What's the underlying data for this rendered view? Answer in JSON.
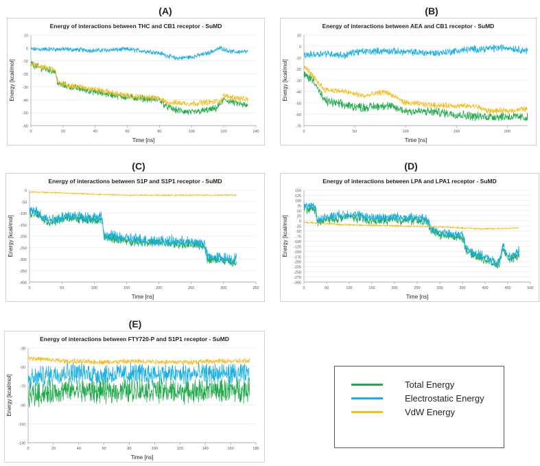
{
  "colors": {
    "total": "#1faa4a",
    "electrostatic": "#18aee6",
    "vdw": "#f5bd1f"
  },
  "legend": [
    {
      "label": "Total Energy",
      "color": "#1faa4a"
    },
    {
      "label": "Electrostatic Energy",
      "color": "#18aee6"
    },
    {
      "label": "VdW Energy",
      "color": "#f5bd1f"
    }
  ],
  "chart_data": [
    {
      "panel_label": "(A)",
      "type": "line",
      "title": "Energy of interactions between THC and CB1 receptor - SuMD",
      "xlabel": "Time [ns]",
      "ylabel": "Energy [kcal/mol]",
      "xlim": [
        0,
        140
      ],
      "ylim": [
        -60,
        10
      ],
      "xticks": [
        0,
        20,
        40,
        60,
        80,
        100,
        120,
        140
      ],
      "yticks": [
        10,
        0,
        -10,
        -20,
        -30,
        -40,
        -50,
        -60
      ],
      "grid": true,
      "series": [
        {
          "name": "Electrostatic Energy",
          "color": "#18aee6",
          "noise": 1.4,
          "x": [
            0,
            20,
            40,
            60,
            75,
            80,
            90,
            100,
            110,
            118,
            125,
            135
          ],
          "y": [
            -1,
            -1,
            -2,
            -1,
            -3,
            -4,
            -8,
            -7,
            -4,
            0,
            -3,
            -3
          ]
        },
        {
          "name": "Total Energy",
          "color": "#1faa4a",
          "noise": 2.2,
          "x": [
            0,
            5,
            15,
            17,
            25,
            40,
            60,
            80,
            84,
            90,
            100,
            115,
            120,
            135
          ],
          "y": [
            -12,
            -15,
            -18,
            -28,
            -30,
            -34,
            -38,
            -40,
            -45,
            -48,
            -50,
            -47,
            -40,
            -45
          ]
        },
        {
          "name": "VdW Energy",
          "color": "#f5bd1f",
          "noise": 1.8,
          "x": [
            0,
            5,
            15,
            17,
            25,
            40,
            60,
            80,
            84,
            100,
            118,
            120,
            135
          ],
          "y": [
            -12,
            -14,
            -17,
            -27,
            -29,
            -32,
            -37,
            -39,
            -42,
            -43,
            -41,
            -37,
            -40
          ]
        }
      ]
    },
    {
      "panel_label": "(B)",
      "type": "line",
      "title": "Energy of interactions between AEA and CB1 receptor - SuMD",
      "xlabel": "Time [ns]",
      "ylabel": "Energy [kcal/mol]",
      "xlim": [
        0,
        220
      ],
      "ylim": [
        -70,
        10
      ],
      "xticks": [
        0,
        50,
        100,
        150,
        200
      ],
      "yticks": [
        10,
        0,
        -10,
        -20,
        -30,
        -40,
        -50,
        -60,
        -70
      ],
      "grid": true,
      "series": [
        {
          "name": "Electrostatic Energy",
          "color": "#18aee6",
          "noise": 2.6,
          "x": [
            0,
            20,
            40,
            50,
            80,
            100,
            130,
            160,
            200,
            220
          ],
          "y": [
            -8,
            -6,
            -8,
            -5,
            -4,
            -5,
            -6,
            -3,
            -1,
            -4
          ]
        },
        {
          "name": "Total Energy",
          "color": "#1faa4a",
          "noise": 3.2,
          "x": [
            0,
            10,
            15,
            20,
            40,
            60,
            80,
            100,
            130,
            170,
            180,
            200,
            220
          ],
          "y": [
            -25,
            -30,
            -40,
            -48,
            -52,
            -54,
            -52,
            -57,
            -58,
            -62,
            -62,
            -62,
            -63
          ]
        },
        {
          "name": "VdW Energy",
          "color": "#f5bd1f",
          "noise": 2.0,
          "x": [
            0,
            5,
            10,
            20,
            40,
            60,
            80,
            100,
            130,
            170,
            180,
            200,
            220
          ],
          "y": [
            -18,
            -22,
            -28,
            -38,
            -40,
            -44,
            -40,
            -50,
            -52,
            -53,
            -57,
            -57,
            -55
          ]
        }
      ]
    },
    {
      "panel_label": "(C)",
      "type": "line",
      "title": "Energy of interactions between S1P and  S1P1 receptor - SuMD",
      "xlabel": "Time [ns]",
      "ylabel": "Energy [kcal/mol]",
      "xlim": [
        0,
        350
      ],
      "ylim": [
        -400,
        0
      ],
      "xticks": [
        0,
        50,
        100,
        150,
        200,
        250,
        300,
        350
      ],
      "yticks": [
        0,
        -50,
        -100,
        -150,
        -200,
        -250,
        -300,
        -350,
        -400
      ],
      "grid": true,
      "series": [
        {
          "name": "Total Energy",
          "color": "#1faa4a",
          "noise": 16,
          "x": [
            0,
            10,
            30,
            60,
            100,
            112,
            115,
            150,
            200,
            270,
            275,
            300,
            320
          ],
          "y": [
            -100,
            -100,
            -140,
            -120,
            -130,
            -130,
            -205,
            -220,
            -230,
            -240,
            -300,
            -305,
            -320
          ]
        },
        {
          "name": "Electrostatic Energy",
          "color": "#18aee6",
          "noise": 20,
          "x": [
            0,
            10,
            30,
            60,
            100,
            112,
            115,
            150,
            200,
            270,
            275,
            300,
            320
          ],
          "y": [
            -90,
            -95,
            -130,
            -110,
            -120,
            -120,
            -195,
            -210,
            -220,
            -230,
            -290,
            -295,
            -300
          ]
        },
        {
          "name": "VdW Energy",
          "color": "#f5bd1f",
          "noise": 2.2,
          "x": [
            0,
            50,
            100,
            150,
            200,
            250,
            300,
            320
          ],
          "y": [
            -8,
            -12,
            -18,
            -22,
            -22,
            -22,
            -22,
            -22
          ]
        }
      ]
    },
    {
      "panel_label": "(D)",
      "type": "line",
      "title": "Energy of interactions between LPA and LPA1 receptor - SuMD",
      "xlabel": "Time [ns]",
      "ylabel": "Energy [kcal/mol]",
      "xlim": [
        0,
        500
      ],
      "ylim": [
        -300,
        150
      ],
      "xticks": [
        0,
        50,
        100,
        150,
        200,
        250,
        300,
        350,
        400,
        450,
        500
      ],
      "yticks": [
        150,
        125,
        100,
        75,
        50,
        25,
        0,
        -25,
        -50,
        -75,
        -100,
        -125,
        -150,
        -175,
        -200,
        -225,
        -250,
        -275,
        -300
      ],
      "grid": true,
      "series": [
        {
          "name": "Total Energy",
          "color": "#1faa4a",
          "noise": 18,
          "x": [
            0,
            25,
            30,
            50,
            100,
            150,
            200,
            270,
            280,
            300,
            350,
            360,
            380,
            430,
            440,
            450,
            475
          ],
          "y": [
            60,
            55,
            -10,
            5,
            20,
            0,
            5,
            0,
            -40,
            -70,
            -80,
            -150,
            -170,
            -220,
            -130,
            -190,
            -170
          ]
        },
        {
          "name": "Electrostatic Energy",
          "color": "#18aee6",
          "noise": 18,
          "x": [
            0,
            25,
            30,
            50,
            100,
            150,
            200,
            270,
            280,
            300,
            350,
            360,
            380,
            430,
            440,
            450,
            475
          ],
          "y": [
            75,
            70,
            0,
            20,
            35,
            15,
            20,
            10,
            -30,
            -60,
            -70,
            -140,
            -160,
            -210,
            -120,
            -180,
            -150
          ]
        },
        {
          "name": "VdW Energy",
          "color": "#f5bd1f",
          "noise": 3,
          "x": [
            0,
            50,
            100,
            200,
            300,
            350,
            400,
            475
          ],
          "y": [
            -8,
            -15,
            -20,
            -25,
            -30,
            -35,
            -40,
            -35
          ]
        }
      ]
    },
    {
      "panel_label": "(E)",
      "type": "line",
      "title": "Energy of interactions between FTY720-P and  S1P1 receptor - SuMD",
      "xlabel": "Time [ns]",
      "ylabel": "Energy [kcal/mol]",
      "xlim": [
        0,
        180
      ],
      "ylim": [
        -130,
        -30
      ],
      "xticks": [
        0,
        20,
        40,
        60,
        80,
        100,
        120,
        140,
        160,
        180
      ],
      "yticks": [
        -30,
        -50,
        -70,
        -90,
        -110,
        -130
      ],
      "grid": true,
      "series": [
        {
          "name": "Electrostatic Energy",
          "color": "#18aee6",
          "noise": 9,
          "x": [
            0,
            10,
            30,
            60,
            90,
            120,
            150,
            175
          ],
          "y": [
            -65,
            -60,
            -55,
            -58,
            -57,
            -58,
            -57,
            -58
          ]
        },
        {
          "name": "Total Energy",
          "color": "#1faa4a",
          "noise": 10,
          "x": [
            0,
            10,
            30,
            60,
            90,
            120,
            150,
            175
          ],
          "y": [
            -80,
            -78,
            -75,
            -76,
            -74,
            -76,
            -75,
            -74
          ]
        },
        {
          "name": "VdW Energy",
          "color": "#f5bd1f",
          "noise": 2.2,
          "x": [
            0,
            10,
            30,
            60,
            90,
            120,
            150,
            175
          ],
          "y": [
            -40,
            -42,
            -44,
            -45,
            -44,
            -45,
            -44,
            -44
          ]
        }
      ]
    }
  ]
}
